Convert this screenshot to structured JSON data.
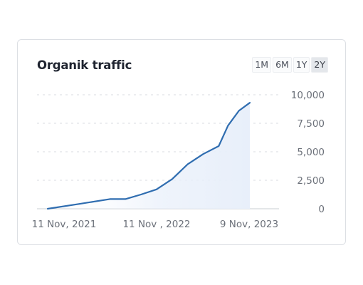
{
  "card": {
    "title": "Organik traffic",
    "ranges": [
      {
        "label": "1M",
        "active": false
      },
      {
        "label": "6M",
        "active": false
      },
      {
        "label": "1Y",
        "active": false
      },
      {
        "label": "2Y",
        "active": true
      }
    ]
  },
  "chart_data": {
    "type": "area",
    "title": "Organik traffic",
    "xlabel": "",
    "ylabel": "",
    "ylim": [
      0,
      10000
    ],
    "y_ticks": [
      0,
      2500,
      5000,
      7500,
      10000
    ],
    "y_tick_labels": [
      "0",
      "2,500",
      "5,000",
      "7,500",
      "10,000"
    ],
    "x_tick_labels": [
      "11 Nov, 2021",
      "11 Nov , 2022",
      "9 Nov, 2023"
    ],
    "grid": true,
    "series": [
      {
        "color": "#2f6db0",
        "fill": "#e8effa",
        "x": [
          0,
          2,
          4,
          5,
          6,
          7,
          8,
          9,
          10,
          11,
          11.6,
          12.3,
          13
        ],
        "values": [
          0,
          420,
          850,
          850,
          1250,
          1700,
          2600,
          3900,
          4800,
          5500,
          7300,
          8600,
          9300
        ]
      }
    ],
    "x_range": [
      0,
      13
    ]
  }
}
